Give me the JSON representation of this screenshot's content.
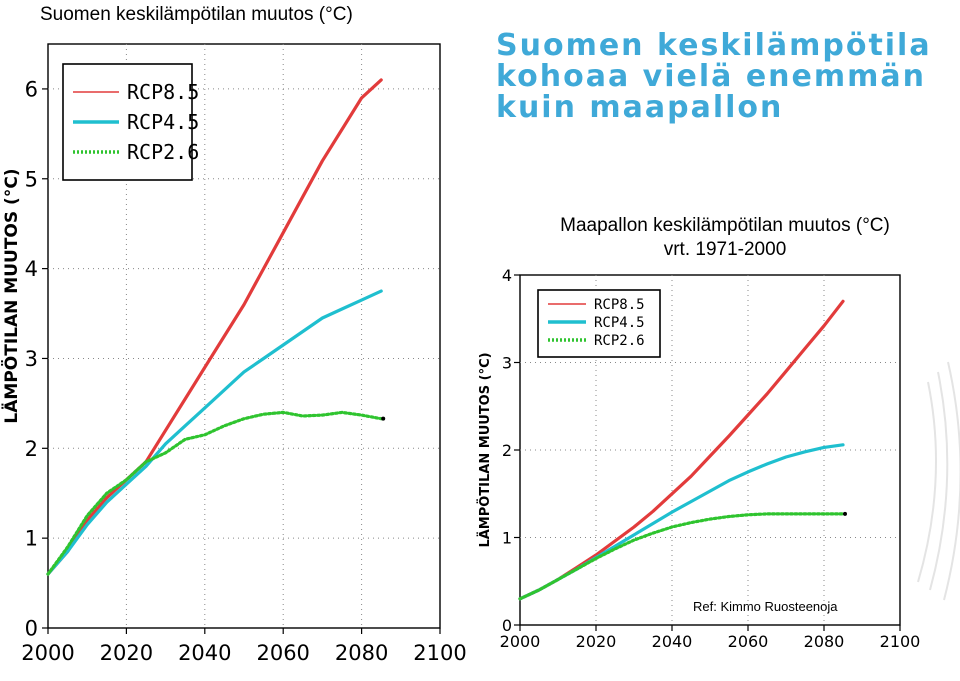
{
  "slide": {
    "title": "Suomen keskilämpötila kohoaa vielä enemmän kuin maapallon",
    "left_chart_title": "Suomen keskilämpötilan muutos (°C)",
    "right_chart_title_line1": "Maapallon keskilämpötilan muutos (°C)",
    "right_chart_title_line2": "vrt. 1971-2000",
    "reference": "Ref: Kimmo Ruosteenoja"
  },
  "colors": {
    "title": "#3fa9d8",
    "rcp85": "#e23b3b",
    "rcp45": "#1fbfcf",
    "rcp26": "#2fc42f"
  },
  "chart_data": [
    {
      "type": "line",
      "title": "Suomen keskilämpötilan muutos (°C)",
      "ylabel": "LÄMPÖTILAN MUUTOS (°C)",
      "xlabel": "",
      "xlim": [
        2000,
        2100
      ],
      "ylim": [
        0,
        6.5
      ],
      "xticks": [
        "2000",
        "2020",
        "2040",
        "2060",
        "2080",
        "2100"
      ],
      "yticks": [
        "0",
        "1",
        "2",
        "3",
        "4",
        "5",
        "6"
      ],
      "grid": true,
      "legend_position": "top-left",
      "series": [
        {
          "name": "RCP8.5",
          "x": [
            2000,
            2005,
            2010,
            2015,
            2020,
            2025,
            2030,
            2035,
            2040,
            2045,
            2050,
            2055,
            2060,
            2065,
            2070,
            2075,
            2080,
            2085
          ],
          "y": [
            0.6,
            0.85,
            1.2,
            1.45,
            1.65,
            1.85,
            2.2,
            2.55,
            2.9,
            3.25,
            3.6,
            4.0,
            4.4,
            4.8,
            5.2,
            5.55,
            5.9,
            6.1
          ]
        },
        {
          "name": "RCP4.5",
          "x": [
            2000,
            2005,
            2010,
            2015,
            2020,
            2025,
            2030,
            2035,
            2040,
            2045,
            2050,
            2055,
            2060,
            2065,
            2070,
            2075,
            2080,
            2085
          ],
          "y": [
            0.6,
            0.85,
            1.15,
            1.4,
            1.6,
            1.8,
            2.05,
            2.25,
            2.45,
            2.65,
            2.85,
            3.0,
            3.15,
            3.3,
            3.45,
            3.55,
            3.65,
            3.75
          ]
        },
        {
          "name": "RCP2.6",
          "x": [
            2000,
            2005,
            2010,
            2015,
            2020,
            2025,
            2030,
            2035,
            2040,
            2045,
            2050,
            2055,
            2060,
            2065,
            2070,
            2075,
            2080,
            2085
          ],
          "y": [
            0.6,
            0.9,
            1.25,
            1.5,
            1.65,
            1.85,
            1.95,
            2.1,
            2.15,
            2.25,
            2.33,
            2.38,
            2.4,
            2.36,
            2.37,
            2.4,
            2.37,
            2.33
          ]
        }
      ]
    },
    {
      "type": "line",
      "title": "Maapallon keskilämpötilan muutos (°C) vrt. 1971-2000",
      "ylabel": "LÄMPÖTILAN MUUTOS (°C)",
      "xlabel": "",
      "xlim": [
        2000,
        2100
      ],
      "ylim": [
        0,
        4
      ],
      "xticks": [
        "2000",
        "2020",
        "2040",
        "2060",
        "2080",
        "2100"
      ],
      "yticks": [
        "0",
        "1",
        "2",
        "3",
        "4"
      ],
      "grid": true,
      "legend_position": "top-left",
      "series": [
        {
          "name": "RCP8.5",
          "x": [
            2000,
            2005,
            2010,
            2015,
            2020,
            2025,
            2030,
            2035,
            2040,
            2045,
            2050,
            2055,
            2060,
            2065,
            2070,
            2075,
            2080,
            2085
          ],
          "y": [
            0.3,
            0.4,
            0.52,
            0.66,
            0.8,
            0.96,
            1.12,
            1.3,
            1.5,
            1.7,
            1.93,
            2.16,
            2.4,
            2.64,
            2.9,
            3.16,
            3.42,
            3.7
          ]
        },
        {
          "name": "RCP4.5",
          "x": [
            2000,
            2005,
            2010,
            2015,
            2020,
            2025,
            2030,
            2035,
            2040,
            2045,
            2050,
            2055,
            2060,
            2065,
            2070,
            2075,
            2080,
            2085
          ],
          "y": [
            0.3,
            0.4,
            0.52,
            0.64,
            0.77,
            0.9,
            1.03,
            1.16,
            1.29,
            1.41,
            1.53,
            1.65,
            1.75,
            1.84,
            1.92,
            1.98,
            2.03,
            2.06
          ]
        },
        {
          "name": "RCP2.6",
          "x": [
            2000,
            2005,
            2010,
            2015,
            2020,
            2025,
            2030,
            2035,
            2040,
            2045,
            2050,
            2055,
            2060,
            2065,
            2070,
            2075,
            2080,
            2085
          ],
          "y": [
            0.3,
            0.4,
            0.52,
            0.64,
            0.76,
            0.87,
            0.97,
            1.05,
            1.12,
            1.17,
            1.21,
            1.24,
            1.26,
            1.27,
            1.27,
            1.27,
            1.27,
            1.27
          ]
        }
      ]
    }
  ]
}
